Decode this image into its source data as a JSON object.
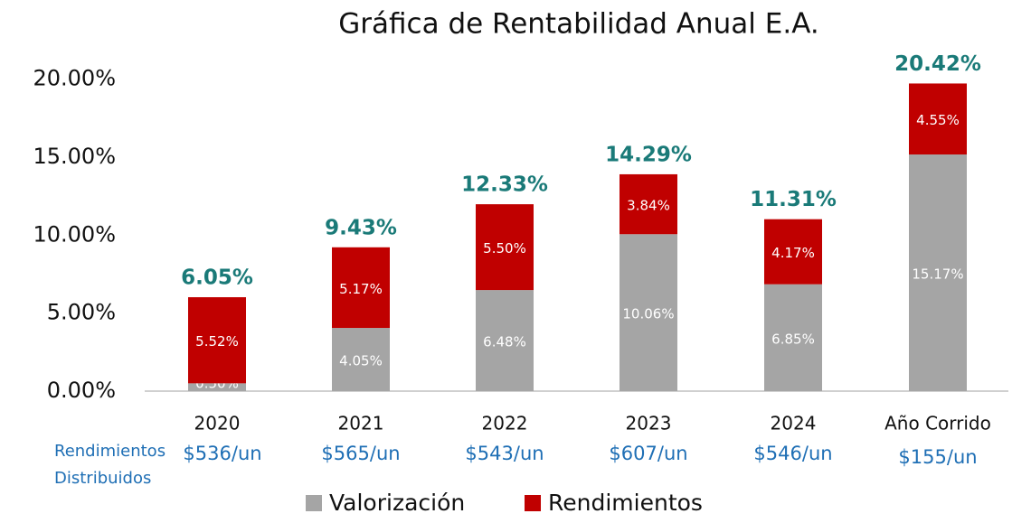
{
  "chart_data": {
    "type": "stacked_bar",
    "title": "Gráfica de Rentabilidad Anual E.A.",
    "categories": [
      "2020",
      "2021",
      "2022",
      "2023",
      "2024",
      "Año Corrido"
    ],
    "series": [
      {
        "name": "Valorización",
        "color": "#a5a5a5",
        "values": [
          0.5,
          4.05,
          6.48,
          10.06,
          6.85,
          15.17
        ],
        "value_labels": [
          "0.50%",
          "4.05%",
          "6.48%",
          "10.06%",
          "6.85%",
          "15.17%"
        ]
      },
      {
        "name": "Rendimientos",
        "color": "#c00000",
        "values": [
          5.52,
          5.17,
          5.5,
          3.84,
          4.17,
          4.55
        ],
        "value_labels": [
          "5.52%",
          "5.17%",
          "5.50%",
          "3.84%",
          "4.17%",
          "4.55%"
        ]
      }
    ],
    "totals": {
      "values": [
        6.05,
        9.43,
        12.33,
        14.29,
        11.31,
        20.42
      ],
      "value_labels": [
        "6.05%",
        "9.43%",
        "12.33%",
        "14.29%",
        "11.31%",
        "20.42%"
      ],
      "color": "#1a7a78"
    },
    "distributed": {
      "title": [
        "Rendimientos",
        "Distribuidos"
      ],
      "values": [
        536,
        565,
        543,
        607,
        546,
        155
      ],
      "value_labels": [
        "$536/un",
        "$565/un",
        "$543/un",
        "$607/un",
        "$546/un",
        "$155/un"
      ],
      "color": "#1f6fb5"
    },
    "ylim": [
      0,
      21
    ],
    "yticks": [
      {
        "value": 0,
        "label": "0.00%"
      },
      {
        "value": 5,
        "label": "5.00%"
      },
      {
        "value": 10,
        "label": "10.00%"
      },
      {
        "value": 15,
        "label": "15.00%"
      },
      {
        "value": 20,
        "label": "20.00%"
      }
    ],
    "grid": false
  }
}
